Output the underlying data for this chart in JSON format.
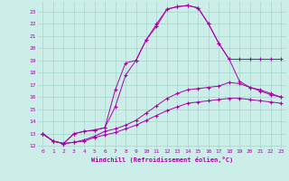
{
  "xlabel": "Windchill (Refroidissement éolien,°C)",
  "background_color": "#cceee8",
  "grid_color": "#aad8d0",
  "line_color": "#aa00aa",
  "xlim": [
    -0.5,
    23.5
  ],
  "ylim": [
    11.8,
    23.8
  ],
  "xticks": [
    0,
    1,
    2,
    3,
    4,
    5,
    6,
    7,
    8,
    9,
    10,
    11,
    12,
    13,
    14,
    15,
    16,
    17,
    18,
    19,
    20,
    21,
    22,
    23
  ],
  "yticks": [
    12,
    13,
    14,
    15,
    16,
    17,
    18,
    19,
    20,
    21,
    22,
    23
  ],
  "curve1_x": [
    0,
    1,
    2,
    3,
    4,
    5,
    6,
    7,
    8,
    9,
    10,
    11,
    12,
    13,
    14,
    15,
    16,
    17,
    18,
    19,
    20,
    21,
    22,
    23
  ],
  "curve1_y": [
    13.0,
    12.4,
    12.2,
    13.0,
    13.2,
    13.3,
    13.5,
    16.6,
    18.8,
    19.0,
    20.7,
    22.0,
    23.2,
    23.4,
    23.5,
    23.3,
    22.0,
    20.4,
    19.1,
    19.1,
    19.1,
    19.1,
    19.1,
    19.1
  ],
  "curve2_x": [
    0,
    1,
    2,
    3,
    4,
    5,
    6,
    7,
    8,
    9,
    10,
    11,
    12,
    13,
    14,
    15,
    16,
    17,
    18,
    19,
    20,
    21,
    22,
    23
  ],
  "curve2_y": [
    13.0,
    12.4,
    12.2,
    13.0,
    13.2,
    13.3,
    13.5,
    15.2,
    17.8,
    19.0,
    20.7,
    21.8,
    23.2,
    23.4,
    23.5,
    23.3,
    22.0,
    20.4,
    19.1,
    17.3,
    16.8,
    16.5,
    16.2,
    16.0
  ],
  "curve3_x": [
    0,
    1,
    2,
    3,
    4,
    5,
    6,
    7,
    8,
    9,
    10,
    11,
    12,
    13,
    14,
    15,
    16,
    17,
    18,
    19,
    20,
    21,
    22,
    23
  ],
  "curve3_y": [
    13.0,
    12.4,
    12.2,
    12.3,
    12.5,
    12.8,
    13.2,
    13.4,
    13.7,
    14.1,
    14.7,
    15.3,
    15.9,
    16.3,
    16.6,
    16.7,
    16.8,
    16.9,
    17.2,
    17.1,
    16.8,
    16.6,
    16.3,
    16.0
  ],
  "curve4_x": [
    0,
    1,
    2,
    3,
    4,
    5,
    6,
    7,
    8,
    9,
    10,
    11,
    12,
    13,
    14,
    15,
    16,
    17,
    18,
    19,
    20,
    21,
    22,
    23
  ],
  "curve4_y": [
    13.0,
    12.4,
    12.2,
    12.3,
    12.4,
    12.7,
    12.9,
    13.1,
    13.4,
    13.7,
    14.1,
    14.5,
    14.9,
    15.2,
    15.5,
    15.6,
    15.7,
    15.8,
    15.9,
    15.9,
    15.8,
    15.7,
    15.6,
    15.5
  ]
}
